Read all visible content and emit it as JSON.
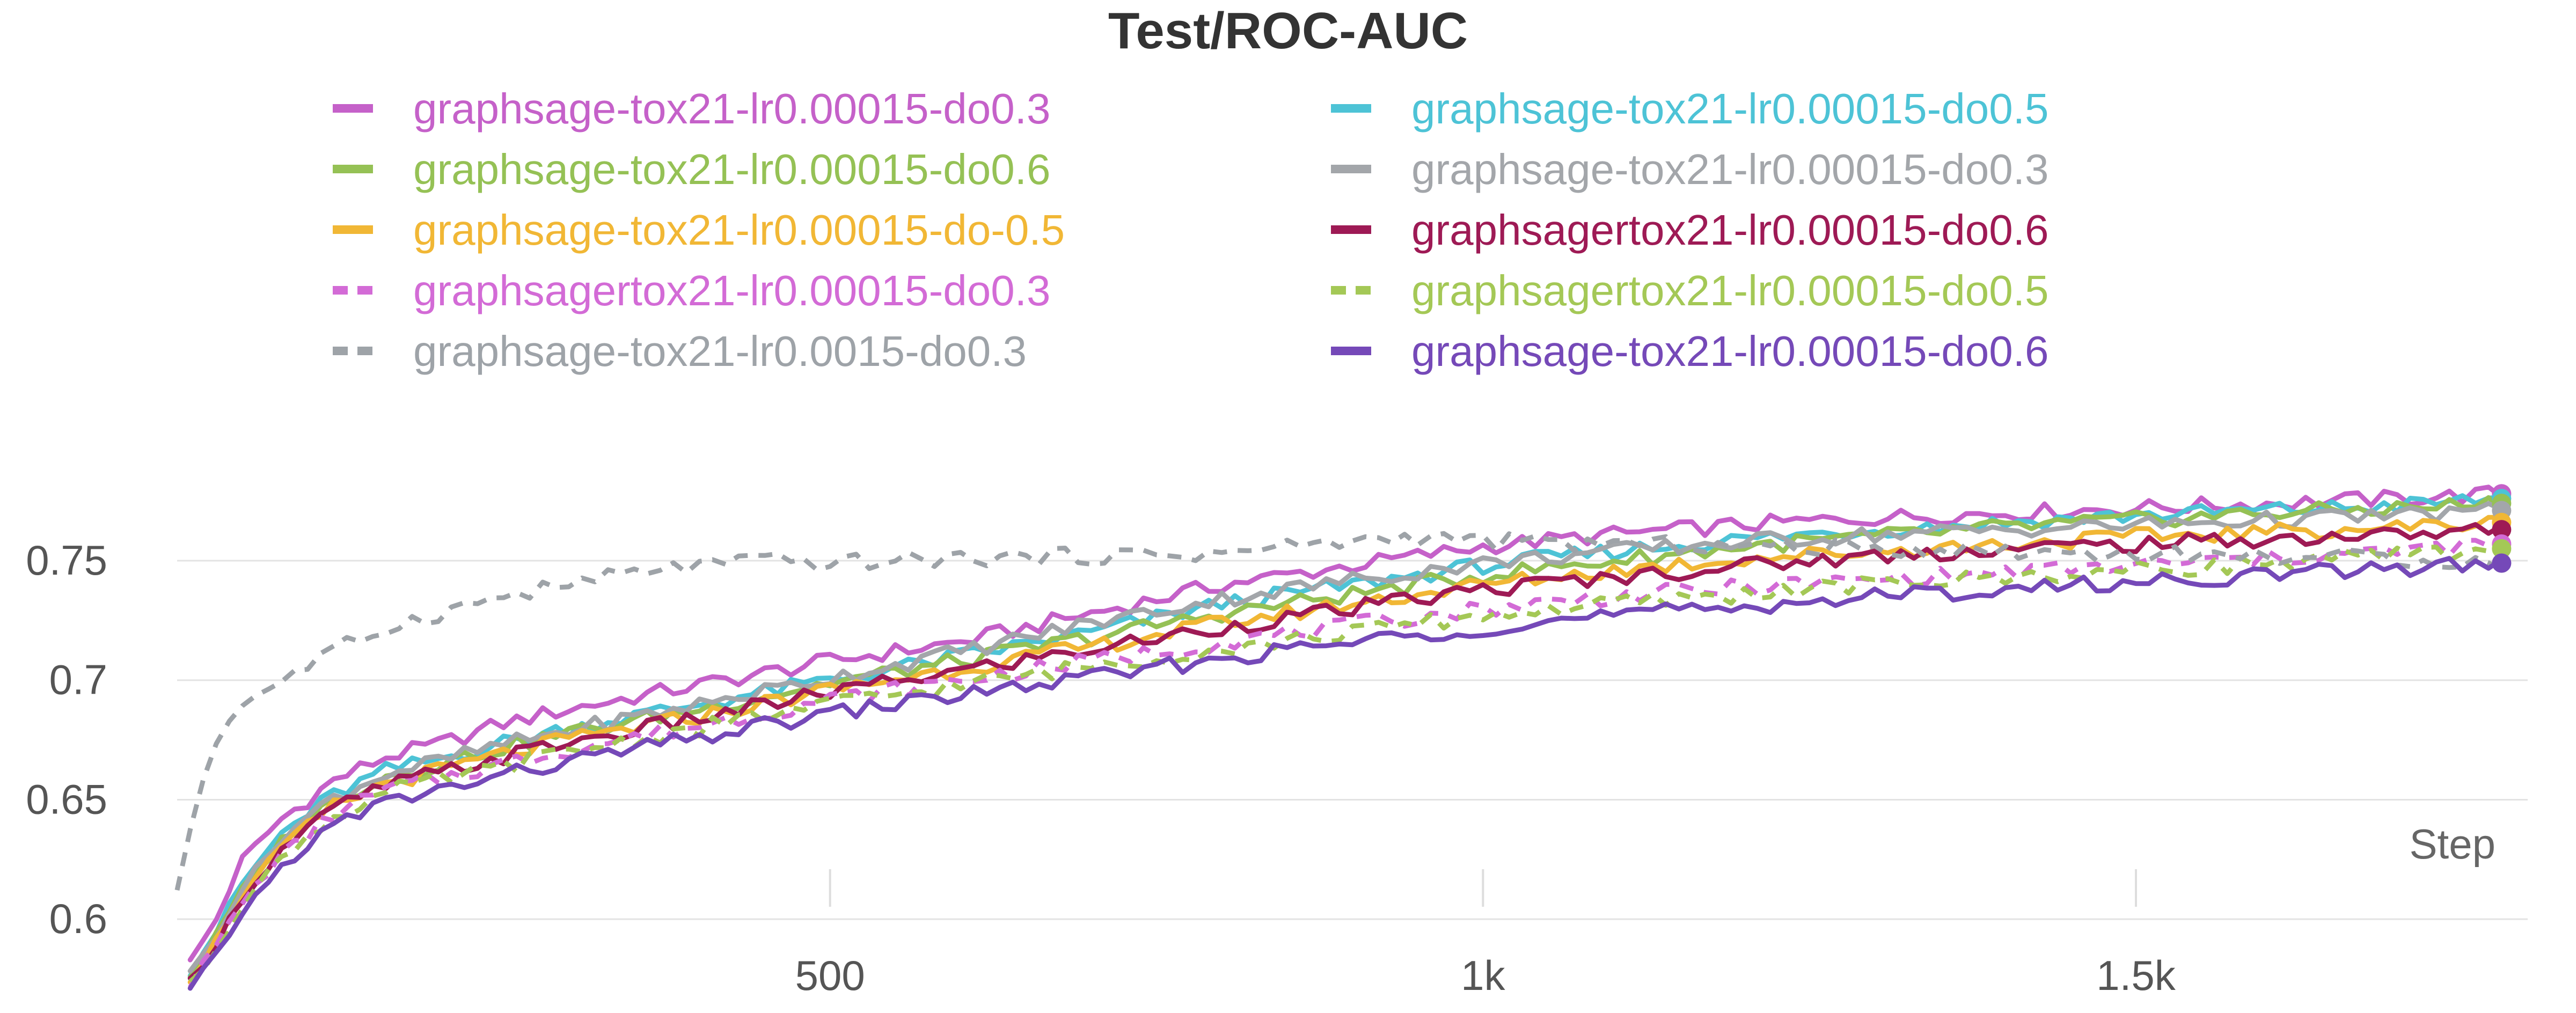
{
  "chart_data": {
    "type": "line",
    "title": "Test/ROC-AUC",
    "xlabel": "Step",
    "ylabel": "",
    "xlim": [
      0,
      1800
    ],
    "ylim": [
      0.585,
      0.805
    ],
    "x_ticks": [
      {
        "value": 500,
        "label": "500"
      },
      {
        "value": 1000,
        "label": "1k"
      },
      {
        "value": 1500,
        "label": "1.5k"
      }
    ],
    "y_ticks": [
      {
        "value": 0.6,
        "label": "0.6"
      },
      {
        "value": 0.65,
        "label": "0.65"
      },
      {
        "value": 0.7,
        "label": "0.7"
      },
      {
        "value": 0.75,
        "label": "0.75"
      }
    ],
    "grid": true,
    "legend_position": "top",
    "series": [
      {
        "name": "graphsage-tox21-lr0.00015-do0.3",
        "color": "#c561c9",
        "dash": false,
        "points": [
          [
            10,
            0.582
          ],
          [
            30,
            0.6
          ],
          [
            50,
            0.625
          ],
          [
            80,
            0.642
          ],
          [
            120,
            0.658
          ],
          [
            160,
            0.668
          ],
          [
            200,
            0.673
          ],
          [
            250,
            0.682
          ],
          [
            300,
            0.688
          ],
          [
            400,
            0.698
          ],
          [
            500,
            0.708
          ],
          [
            600,
            0.716
          ],
          [
            700,
            0.728
          ],
          [
            800,
            0.74
          ],
          [
            900,
            0.748
          ],
          [
            1000,
            0.756
          ],
          [
            1100,
            0.761
          ],
          [
            1200,
            0.765
          ],
          [
            1300,
            0.768
          ],
          [
            1400,
            0.77
          ],
          [
            1500,
            0.772
          ],
          [
            1600,
            0.774
          ],
          [
            1700,
            0.776
          ],
          [
            1780,
            0.778
          ]
        ]
      },
      {
        "name": "graphsage-tox21-lr0.00015-do0.5",
        "color": "#4dc3d6",
        "dash": false,
        "points": [
          [
            10,
            0.578
          ],
          [
            30,
            0.595
          ],
          [
            50,
            0.615
          ],
          [
            80,
            0.636
          ],
          [
            120,
            0.652
          ],
          [
            160,
            0.662
          ],
          [
            200,
            0.667
          ],
          [
            250,
            0.674
          ],
          [
            300,
            0.68
          ],
          [
            400,
            0.69
          ],
          [
            500,
            0.7
          ],
          [
            600,
            0.71
          ],
          [
            700,
            0.72
          ],
          [
            800,
            0.732
          ],
          [
            900,
            0.74
          ],
          [
            1000,
            0.748
          ],
          [
            1100,
            0.754
          ],
          [
            1200,
            0.759
          ],
          [
            1300,
            0.763
          ],
          [
            1400,
            0.766
          ],
          [
            1500,
            0.769
          ],
          [
            1600,
            0.771
          ],
          [
            1700,
            0.773
          ],
          [
            1780,
            0.776
          ]
        ]
      },
      {
        "name": "graphsage-tox21-lr0.00015-do0.6",
        "color": "#95c155",
        "dash": false,
        "points": [
          [
            10,
            0.576
          ],
          [
            30,
            0.593
          ],
          [
            50,
            0.612
          ],
          [
            80,
            0.633
          ],
          [
            120,
            0.65
          ],
          [
            160,
            0.66
          ],
          [
            200,
            0.665
          ],
          [
            250,
            0.672
          ],
          [
            300,
            0.678
          ],
          [
            400,
            0.688
          ],
          [
            500,
            0.699
          ],
          [
            600,
            0.708
          ],
          [
            700,
            0.718
          ],
          [
            800,
            0.728
          ],
          [
            900,
            0.736
          ],
          [
            1000,
            0.744
          ],
          [
            1100,
            0.75
          ],
          [
            1200,
            0.756
          ],
          [
            1300,
            0.76
          ],
          [
            1400,
            0.764
          ],
          [
            1500,
            0.767
          ],
          [
            1600,
            0.77
          ],
          [
            1700,
            0.772
          ],
          [
            1780,
            0.774
          ]
        ]
      },
      {
        "name": "graphsage-tox21-lr0.00015-do0.3",
        "color": "#a3a6aa",
        "dash": false,
        "points": [
          [
            10,
            0.577
          ],
          [
            30,
            0.594
          ],
          [
            50,
            0.613
          ],
          [
            80,
            0.634
          ],
          [
            120,
            0.651
          ],
          [
            160,
            0.661
          ],
          [
            200,
            0.666
          ],
          [
            250,
            0.673
          ],
          [
            300,
            0.679
          ],
          [
            400,
            0.69
          ],
          [
            500,
            0.701
          ],
          [
            600,
            0.712
          ],
          [
            700,
            0.724
          ],
          [
            800,
            0.734
          ],
          [
            900,
            0.742
          ],
          [
            1000,
            0.749
          ],
          [
            1100,
            0.754
          ],
          [
            1200,
            0.758
          ],
          [
            1300,
            0.761
          ],
          [
            1400,
            0.763
          ],
          [
            1500,
            0.765
          ],
          [
            1600,
            0.767
          ],
          [
            1700,
            0.769
          ],
          [
            1780,
            0.771
          ]
        ]
      },
      {
        "name": "graphsage-tox21-lr0.00015-do-0.5",
        "color": "#f1b735",
        "dash": false,
        "points": [
          [
            10,
            0.575
          ],
          [
            30,
            0.591
          ],
          [
            50,
            0.61
          ],
          [
            80,
            0.63
          ],
          [
            120,
            0.647
          ],
          [
            160,
            0.657
          ],
          [
            200,
            0.662
          ],
          [
            250,
            0.669
          ],
          [
            300,
            0.675
          ],
          [
            400,
            0.685
          ],
          [
            500,
            0.696
          ],
          [
            600,
            0.705
          ],
          [
            700,
            0.714
          ],
          [
            800,
            0.724
          ],
          [
            900,
            0.732
          ],
          [
            1000,
            0.74
          ],
          [
            1100,
            0.746
          ],
          [
            1200,
            0.751
          ],
          [
            1300,
            0.754
          ],
          [
            1400,
            0.757
          ],
          [
            1500,
            0.76
          ],
          [
            1600,
            0.762
          ],
          [
            1700,
            0.764
          ],
          [
            1780,
            0.766
          ]
        ]
      },
      {
        "name": "graphsagertox21-lr0.00015-do0.6",
        "color": "#9e1a55",
        "dash": false,
        "points": [
          [
            10,
            0.574
          ],
          [
            30,
            0.59
          ],
          [
            50,
            0.609
          ],
          [
            80,
            0.629
          ],
          [
            120,
            0.646
          ],
          [
            160,
            0.656
          ],
          [
            200,
            0.661
          ],
          [
            250,
            0.668
          ],
          [
            300,
            0.674
          ],
          [
            400,
            0.684
          ],
          [
            500,
            0.695
          ],
          [
            600,
            0.704
          ],
          [
            700,
            0.713
          ],
          [
            800,
            0.722
          ],
          [
            900,
            0.73
          ],
          [
            1000,
            0.738
          ],
          [
            1100,
            0.743
          ],
          [
            1200,
            0.748
          ],
          [
            1300,
            0.752
          ],
          [
            1400,
            0.755
          ],
          [
            1500,
            0.757
          ],
          [
            1600,
            0.759
          ],
          [
            1700,
            0.761
          ],
          [
            1780,
            0.763
          ]
        ]
      },
      {
        "name": "graphsagertox21-lr0.00015-do0.3",
        "color": "#d36bd6",
        "dash": true,
        "points": [
          [
            10,
            0.573
          ],
          [
            30,
            0.589
          ],
          [
            50,
            0.607
          ],
          [
            80,
            0.627
          ],
          [
            120,
            0.644
          ],
          [
            160,
            0.654
          ],
          [
            200,
            0.659
          ],
          [
            250,
            0.665
          ],
          [
            300,
            0.671
          ],
          [
            400,
            0.681
          ],
          [
            500,
            0.692
          ],
          [
            600,
            0.7
          ],
          [
            700,
            0.708
          ],
          [
            800,
            0.716
          ],
          [
            900,
            0.723
          ],
          [
            1000,
            0.73
          ],
          [
            1100,
            0.735
          ],
          [
            1200,
            0.739
          ],
          [
            1300,
            0.742
          ],
          [
            1400,
            0.745
          ],
          [
            1500,
            0.748
          ],
          [
            1600,
            0.751
          ],
          [
            1700,
            0.754
          ],
          [
            1780,
            0.757
          ]
        ]
      },
      {
        "name": "graphsagertox21-lr0.00015-do0.5",
        "color": "#a4c856",
        "dash": true,
        "points": [
          [
            10,
            0.572
          ],
          [
            30,
            0.588
          ],
          [
            50,
            0.606
          ],
          [
            80,
            0.626
          ],
          [
            120,
            0.643
          ],
          [
            160,
            0.653
          ],
          [
            200,
            0.658
          ],
          [
            250,
            0.664
          ],
          [
            300,
            0.67
          ],
          [
            400,
            0.68
          ],
          [
            500,
            0.69
          ],
          [
            600,
            0.698
          ],
          [
            700,
            0.706
          ],
          [
            800,
            0.713
          ],
          [
            900,
            0.72
          ],
          [
            1000,
            0.727
          ],
          [
            1100,
            0.732
          ],
          [
            1200,
            0.736
          ],
          [
            1300,
            0.74
          ],
          [
            1400,
            0.743
          ],
          [
            1500,
            0.746
          ],
          [
            1600,
            0.749
          ],
          [
            1700,
            0.752
          ],
          [
            1780,
            0.755
          ]
        ]
      },
      {
        "name": "graphsage-tox21-lr0.0015-do0.3",
        "color": "#9ea3a8",
        "dash": true,
        "points": [
          [
            0,
            0.613
          ],
          [
            15,
            0.65
          ],
          [
            30,
            0.675
          ],
          [
            50,
            0.69
          ],
          [
            80,
            0.7
          ],
          [
            120,
            0.712
          ],
          [
            160,
            0.722
          ],
          [
            200,
            0.728
          ],
          [
            250,
            0.735
          ],
          [
            300,
            0.74
          ],
          [
            350,
            0.745
          ],
          [
            400,
            0.748
          ],
          [
            450,
            0.75
          ],
          [
            500,
            0.749
          ],
          [
            600,
            0.751
          ],
          [
            700,
            0.752
          ],
          [
            800,
            0.753
          ],
          [
            850,
            0.756
          ],
          [
            900,
            0.758
          ],
          [
            950,
            0.76
          ],
          [
            1000,
            0.758
          ],
          [
            1100,
            0.757
          ],
          [
            1200,
            0.756
          ],
          [
            1300,
            0.755
          ],
          [
            1400,
            0.754
          ],
          [
            1500,
            0.753
          ],
          [
            1600,
            0.752
          ],
          [
            1700,
            0.751
          ],
          [
            1780,
            0.749
          ]
        ]
      },
      {
        "name": "graphsage-tox21-lr0.00015-do0.6",
        "color": "#7549b8",
        "dash": false,
        "points": [
          [
            10,
            0.57
          ],
          [
            30,
            0.585
          ],
          [
            50,
            0.603
          ],
          [
            80,
            0.622
          ],
          [
            120,
            0.639
          ],
          [
            160,
            0.649
          ],
          [
            200,
            0.654
          ],
          [
            250,
            0.66
          ],
          [
            300,
            0.666
          ],
          [
            400,
            0.676
          ],
          [
            500,
            0.686
          ],
          [
            600,
            0.694
          ],
          [
            700,
            0.701
          ],
          [
            800,
            0.709
          ],
          [
            900,
            0.716
          ],
          [
            1000,
            0.722
          ],
          [
            1100,
            0.727
          ],
          [
            1200,
            0.731
          ],
          [
            1300,
            0.735
          ],
          [
            1400,
            0.738
          ],
          [
            1500,
            0.741
          ],
          [
            1600,
            0.744
          ],
          [
            1700,
            0.747
          ],
          [
            1780,
            0.749
          ]
        ]
      }
    ]
  }
}
